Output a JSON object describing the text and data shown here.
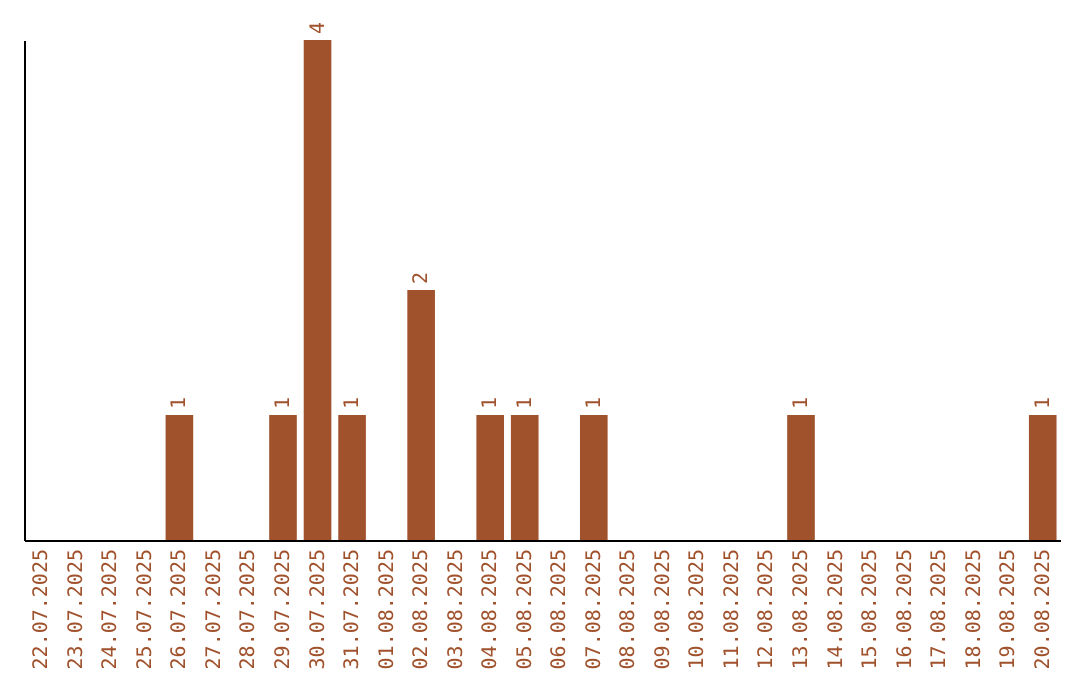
{
  "chart_data": {
    "type": "bar",
    "categories": [
      "22.07.2025",
      "23.07.2025",
      "24.07.2025",
      "25.07.2025",
      "26.07.2025",
      "27.07.2025",
      "28.07.2025",
      "29.07.2025",
      "30.07.2025",
      "31.07.2025",
      "01.08.2025",
      "02.08.2025",
      "03.08.2025",
      "04.08.2025",
      "05.08.2025",
      "06.08.2025",
      "07.08.2025",
      "08.08.2025",
      "09.08.2025",
      "10.08.2025",
      "11.08.2025",
      "12.08.2025",
      "13.08.2025",
      "14.08.2025",
      "15.08.2025",
      "16.08.2025",
      "17.08.2025",
      "18.08.2025",
      "19.08.2025",
      "20.08.2025"
    ],
    "values": [
      0,
      0,
      0,
      0,
      1,
      0,
      0,
      1,
      4,
      1,
      0,
      2,
      0,
      1,
      1,
      0,
      1,
      0,
      0,
      0,
      0,
      0,
      1,
      0,
      0,
      0,
      0,
      0,
      0,
      1
    ],
    "value_labels": [
      null,
      null,
      null,
      null,
      "1",
      null,
      null,
      "1",
      "4",
      "1",
      null,
      "2",
      null,
      "1",
      "1",
      null,
      "1",
      null,
      null,
      null,
      null,
      null,
      "1",
      null,
      null,
      null,
      null,
      null,
      null,
      "1"
    ],
    "color": "#a0522d",
    "tick_labels": "x",
    "grid": false
  }
}
